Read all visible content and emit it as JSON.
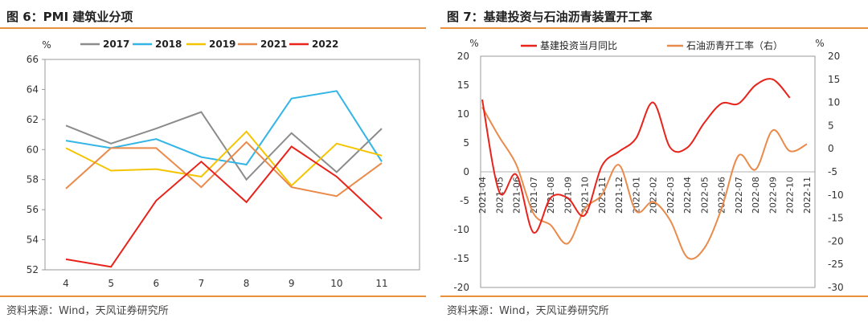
{
  "left": {
    "title": "图 6：PMI 建筑业分项",
    "source": "资料来源：Wind，天风证券研究所",
    "unit": "%"
  },
  "right": {
    "title": "图 7：基建投资与石油沥青装置开工率",
    "source": "资料来源：Wind，天风证券研究所",
    "unit_left": "%",
    "unit_right": "%"
  },
  "chart_data": [
    {
      "type": "line",
      "title": "图 6：PMI 建筑业分项",
      "ylabel": "%",
      "ylim": [
        52,
        66
      ],
      "yticks": [
        52,
        54,
        56,
        58,
        60,
        62,
        64,
        66
      ],
      "categories": [
        "4",
        "5",
        "6",
        "7",
        "8",
        "9",
        "10",
        "11"
      ],
      "legend_position": "top",
      "series": [
        {
          "name": "2017",
          "color": "#8c8c8c",
          "values": [
            61.6,
            60.4,
            61.4,
            62.5,
            58.0,
            61.1,
            58.5,
            61.4
          ]
        },
        {
          "name": "2018",
          "color": "#33b5e5",
          "values": [
            60.6,
            60.1,
            60.7,
            59.5,
            59.0,
            63.4,
            63.9,
            59.2
          ]
        },
        {
          "name": "2019",
          "color": "#f5c400",
          "values": [
            60.1,
            58.6,
            58.7,
            58.2,
            61.2,
            57.6,
            60.4,
            59.6
          ]
        },
        {
          "name": "2021",
          "color": "#ea8a4b",
          "values": [
            57.4,
            60.1,
            60.1,
            57.5,
            60.5,
            57.5,
            56.9,
            59.1
          ]
        },
        {
          "name": "2022",
          "color": "#e8231c",
          "values": [
            52.7,
            52.2,
            56.6,
            59.2,
            56.5,
            60.2,
            58.2,
            55.4
          ]
        }
      ]
    },
    {
      "type": "line",
      "title": "图 7：基建投资与石油沥青装置开工率",
      "categories": [
        "2021-04",
        "2021-05",
        "2021-06",
        "2021-07",
        "2021-08",
        "2021-09",
        "2021-10",
        "2021-11",
        "2021-12",
        "2022-01",
        "2022-02",
        "2022-03",
        "2022-04",
        "2022-05",
        "2022-06",
        "2022-07",
        "2022-08",
        "2022-09",
        "2022-10",
        "2022-11"
      ],
      "ylim_left": [
        -20,
        20
      ],
      "yticks_left": [
        -20,
        -15,
        -10,
        -5,
        0,
        5,
        10,
        15,
        20
      ],
      "ylim_right": [
        -30,
        20
      ],
      "yticks_right": [
        -30,
        -25,
        -20,
        -15,
        -10,
        -5,
        0,
        5,
        10,
        15,
        20
      ],
      "legend_position": "top",
      "series": [
        {
          "name": "基建投资当月同比",
          "axis": "left",
          "color": "#e8231c",
          "values": [
            12.5,
            -3.5,
            -0.5,
            -10.5,
            -4.5,
            -4.5,
            -7.5,
            1.0,
            3.5,
            5.8,
            12.0,
            4.2,
            4.2,
            8.5,
            11.8,
            11.8,
            15.0,
            16.0,
            12.8,
            null
          ]
        },
        {
          "name": "石油沥青开工率（右）",
          "axis": "right",
          "color": "#ea8a4b",
          "values": [
            9.0,
            2.5,
            -3.5,
            -14.0,
            -16.5,
            -20.5,
            -13.0,
            -10.0,
            -3.5,
            -13.5,
            -11.5,
            -15.5,
            -23.5,
            -21.5,
            -13.0,
            -1.5,
            -4.5,
            4.0,
            -0.5,
            1.0
          ]
        }
      ]
    }
  ]
}
